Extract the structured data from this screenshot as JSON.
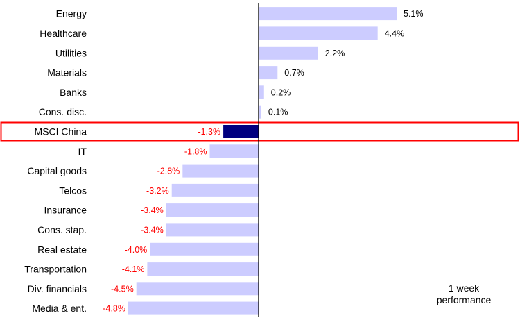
{
  "chart_data": {
    "type": "bar",
    "orientation": "horizontal",
    "categories": [
      "Energy",
      "Healthcare",
      "Utilities",
      "Materials",
      "Banks",
      "Cons. disc.",
      "MSCI China",
      "IT",
      "Capital goods",
      "Telcos",
      "Insurance",
      "Cons. stap.",
      "Real estate",
      "Transportation",
      "Div. financials",
      "Media & ent."
    ],
    "values": [
      5.1,
      4.4,
      2.2,
      0.7,
      0.2,
      0.1,
      -1.3,
      -1.8,
      -2.8,
      -3.2,
      -3.4,
      -3.4,
      -4.0,
      -4.1,
      -4.5,
      -4.8
    ],
    "value_labels": [
      "5.1%",
      "4.4%",
      "2.2%",
      "0.7%",
      "0.2%",
      "0.1%",
      "-1.3%",
      "-1.8%",
      "-2.8%",
      "-3.2%",
      "-3.4%",
      "-3.4%",
      "-4.0%",
      "-4.1%",
      "-4.5%",
      "-4.8%"
    ],
    "highlight_category": "MSCI China",
    "annotation": [
      "1 week",
      "performance"
    ],
    "title": "",
    "xlabel": "",
    "ylabel": "",
    "xlim": [
      -4.85,
      5.2
    ],
    "grid": false,
    "legend": "none"
  },
  "colors": {
    "bar": "#ccccff",
    "highlight_bar": "#000080",
    "highlight_border": "#ff0000",
    "positive_label": "#000000",
    "negative_label": "#ff0000",
    "axis": "#000000"
  }
}
